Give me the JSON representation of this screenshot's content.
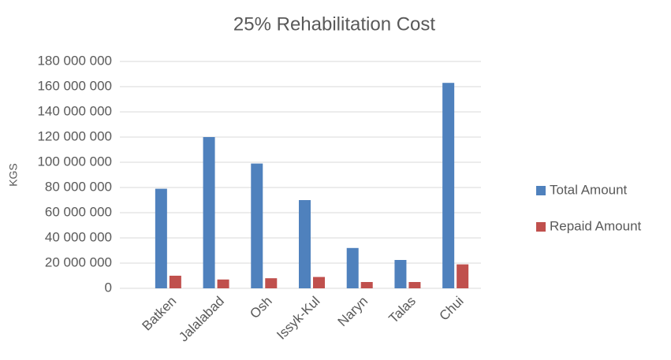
{
  "chart_data": {
    "type": "bar",
    "title": "25% Rehabilitation Cost",
    "y_label": "KGS",
    "categories": [
      "Batken",
      "Jalalabad",
      "Osh",
      "Issyk-Kul",
      "Naryn",
      "Talas",
      "Chui"
    ],
    "series": [
      {
        "name": "Total Amount",
        "color": "#4f81bd",
        "values": [
          79000000,
          120000000,
          99000000,
          70000000,
          32000000,
          22500000,
          163000000
        ]
      },
      {
        "name": "Repaid Amount",
        "color": "#c0504d",
        "values": [
          10000000,
          7000000,
          8000000,
          9000000,
          5000000,
          5000000,
          19000000
        ]
      }
    ],
    "ylim": [
      0,
      180000000
    ],
    "yticks": [
      0,
      {
        "value": 20000000,
        "label": "20 000 000"
      },
      {
        "value": 40000000,
        "label": "40 000 000"
      },
      {
        "value": 60000000,
        "label": "60 000 000"
      },
      {
        "value": 80000000,
        "label": "80 000 000"
      },
      {
        "value": 100000000,
        "label": "100 000 000"
      },
      {
        "value": 120000000,
        "label": "120 000 000"
      },
      {
        "value": 140000000,
        "label": "140 000 000"
      },
      {
        "value": 160000000,
        "label": "160 000 000"
      },
      {
        "value": 180000000,
        "label": "180 000 000"
      }
    ],
    "grid": true,
    "legend": "right"
  }
}
